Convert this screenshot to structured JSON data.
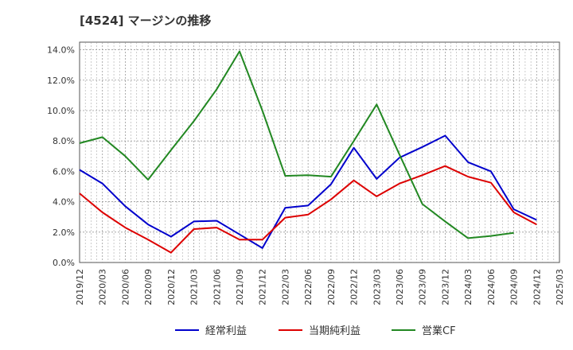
{
  "chart_data": {
    "type": "line",
    "title": "[4524]  マージンの推移",
    "xlabel": "",
    "ylabel": "",
    "ylim": [
      0,
      14.5
    ],
    "yticks": [
      0,
      2,
      4,
      6,
      8,
      10,
      12,
      14
    ],
    "ytick_labels": [
      "0.0%",
      "2.0%",
      "4.0%",
      "6.0%",
      "8.0%",
      "10.0%",
      "12.0%",
      "14.0%"
    ],
    "x": [
      "2019/12",
      "2020/03",
      "2020/06",
      "2020/09",
      "2020/12",
      "2021/03",
      "2021/06",
      "2021/09",
      "2021/12",
      "2022/03",
      "2022/06",
      "2022/09",
      "2022/12",
      "2023/03",
      "2023/06",
      "2023/09",
      "2023/12",
      "2024/03",
      "2024/06",
      "2024/09",
      "2024/12",
      "2025/03"
    ],
    "grid": true,
    "legend_position": "bottom",
    "series": [
      {
        "name": "経常利益",
        "color": "#0000cc",
        "values": [
          6.1,
          5.2,
          3.7,
          2.5,
          1.7,
          2.7,
          2.75,
          1.85,
          0.95,
          3.6,
          3.75,
          5.15,
          7.55,
          5.5,
          6.9,
          7.6,
          8.35,
          6.6,
          6.0,
          3.5,
          2.8,
          null
        ]
      },
      {
        "name": "当期純利益",
        "color": "#dd0000",
        "values": [
          4.55,
          3.3,
          2.3,
          1.5,
          0.65,
          2.2,
          2.3,
          1.5,
          1.5,
          2.95,
          3.15,
          4.15,
          5.4,
          4.35,
          5.2,
          5.75,
          6.35,
          5.65,
          5.25,
          3.3,
          2.5,
          null
        ]
      },
      {
        "name": "営業CF",
        "color": "#228822",
        "values": [
          7.85,
          8.25,
          7.0,
          5.45,
          7.4,
          9.3,
          11.4,
          13.9,
          10.0,
          5.7,
          5.75,
          5.65,
          8.0,
          10.4,
          7.1,
          3.85,
          2.7,
          1.6,
          1.75,
          1.95,
          null,
          null
        ]
      }
    ]
  }
}
